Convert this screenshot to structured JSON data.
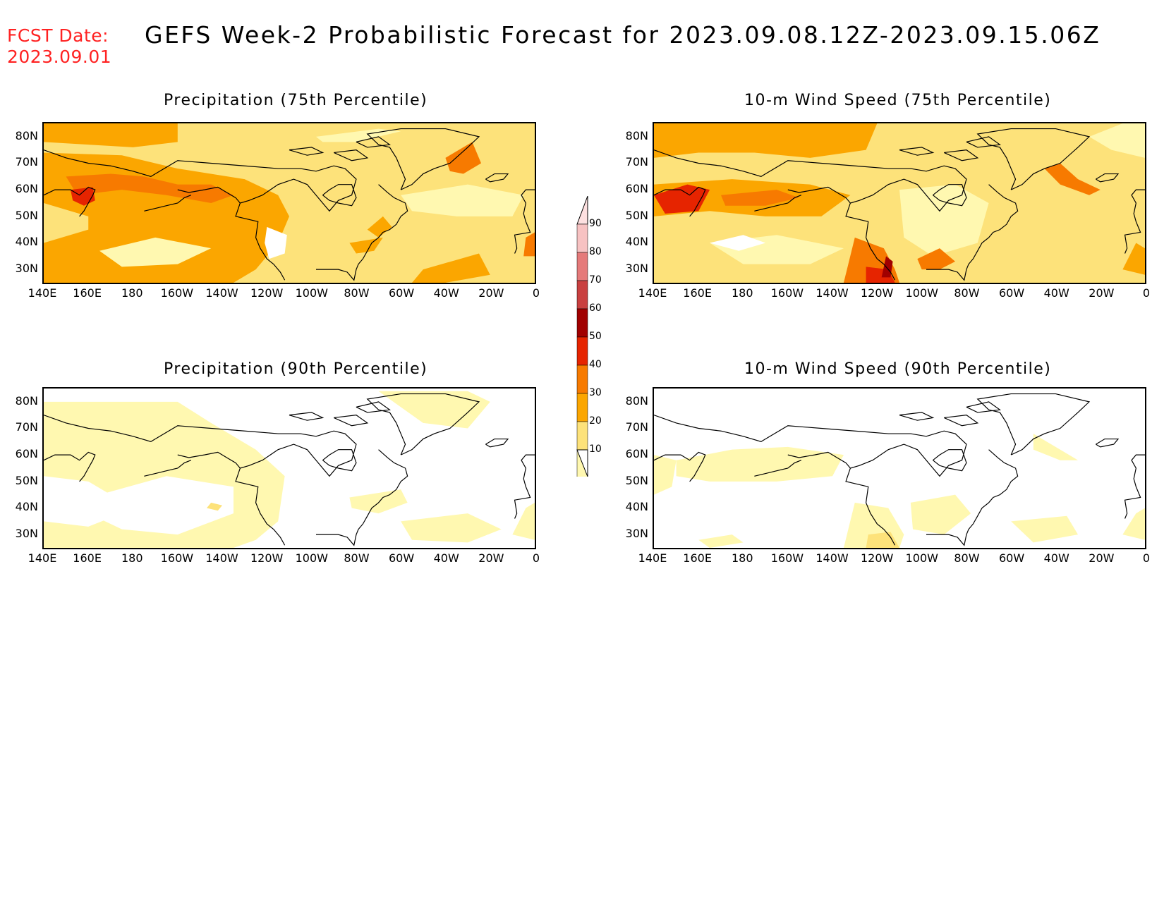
{
  "forecast_date": {
    "label": "FCST Date:",
    "value": "2023.09.01"
  },
  "title": "GEFS Week-2 Probabilistic Forecast for 2023.09.08.12Z-2023.09.15.06Z",
  "colors": {
    "10": "#fff8b0",
    "20": "#fde27a",
    "30": "#fba600",
    "40": "#f77a00",
    "50": "#e62400",
    "60": "#a10000",
    "70": "#c94040",
    "80": "#e57a7a",
    "90": "#f7c2c2",
    "coast": "#000000",
    "fcst_date": "#ff2222"
  },
  "panels": [
    {
      "title": "Precipitation (75th Percentile)"
    },
    {
      "title": "10-m Wind Speed (75th Percentile)"
    },
    {
      "title": "Precipitation (90th Percentile)"
    },
    {
      "title": "10-m Wind Speed (90th Percentile)"
    }
  ],
  "lat_labels": [
    "80N",
    "70N",
    "60N",
    "50N",
    "40N",
    "30N"
  ],
  "lon_labels": [
    "140E",
    "160E",
    "180",
    "160W",
    "140W",
    "120W",
    "100W",
    "80W",
    "60W",
    "40W",
    "20W",
    "0"
  ],
  "colorbar": {
    "labels": [
      "90",
      "80",
      "70",
      "60",
      "50",
      "40",
      "30",
      "20",
      "10"
    ]
  }
}
